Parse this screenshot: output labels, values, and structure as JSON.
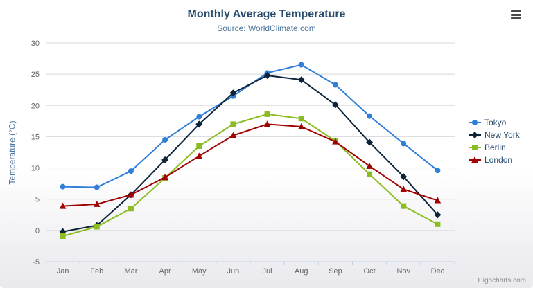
{
  "header": {
    "title": "Monthly Average Temperature",
    "subtitle": "Source: WorldClimate.com"
  },
  "credits": {
    "label": "Highcharts.com"
  },
  "chart_data": {
    "type": "line",
    "title": "Monthly Average Temperature",
    "subtitle": "Source: WorldClimate.com",
    "categories": [
      "Jan",
      "Feb",
      "Mar",
      "Apr",
      "May",
      "Jun",
      "Jul",
      "Aug",
      "Sep",
      "Oct",
      "Nov",
      "Dec"
    ],
    "series": [
      {
        "name": "Tokyo",
        "color": "#2f7ed8",
        "marker": "circle",
        "values": [
          7.0,
          6.9,
          9.5,
          14.5,
          18.2,
          21.5,
          25.2,
          26.5,
          23.3,
          18.3,
          13.9,
          9.6
        ]
      },
      {
        "name": "New York",
        "color": "#0d233a",
        "marker": "diamond",
        "values": [
          -0.2,
          0.8,
          5.7,
          11.3,
          17.0,
          22.0,
          24.8,
          24.1,
          20.1,
          14.1,
          8.6,
          2.5
        ]
      },
      {
        "name": "Berlin",
        "color": "#8bbc21",
        "marker": "square",
        "values": [
          -0.9,
          0.6,
          3.5,
          8.4,
          13.5,
          17.0,
          18.6,
          17.9,
          14.3,
          9.0,
          3.9,
          1.0
        ]
      },
      {
        "name": "London",
        "color": "#a00000",
        "marker": "triangle",
        "values": [
          3.9,
          4.2,
          5.7,
          8.5,
          11.9,
          15.2,
          17.0,
          16.6,
          14.2,
          10.3,
          6.6,
          4.8
        ]
      }
    ],
    "xlabel": "",
    "ylabel": "Temperature (°C)",
    "ylim": [
      -5,
      30
    ],
    "ytick_step": 5,
    "grid": true,
    "legend_position": "right",
    "text_colors": {
      "axis_labels": "#666666",
      "title": "#274b6d",
      "subtitle": "#4d759e"
    }
  }
}
